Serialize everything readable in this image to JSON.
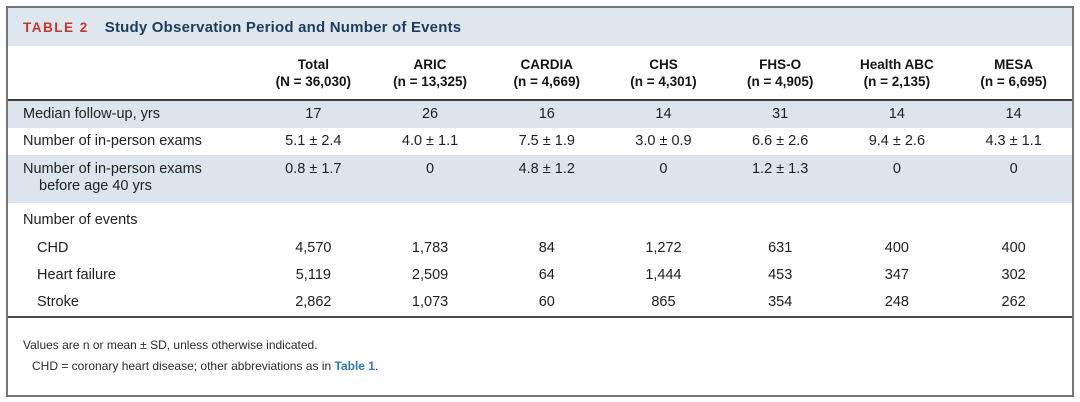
{
  "table": {
    "label": "TABLE 2",
    "title": "Study Observation Period and Number of Events",
    "columns": [
      {
        "name": "Total",
        "n": "(N = 36,030)"
      },
      {
        "name": "ARIC",
        "n": "(n = 13,325)"
      },
      {
        "name": "CARDIA",
        "n": "(n = 4,669)"
      },
      {
        "name": "CHS",
        "n": "(n = 4,301)"
      },
      {
        "name": "FHS-O",
        "n": "(n = 4,905)"
      },
      {
        "name": "Health ABC",
        "n": "(n = 2,135)"
      },
      {
        "name": "MESA",
        "n": "(n = 6,695)"
      }
    ],
    "rows": [
      {
        "label": "Median follow-up, yrs",
        "values": [
          "17",
          "26",
          "16",
          "14",
          "31",
          "14",
          "14"
        ]
      },
      {
        "label": "Number of in-person exams",
        "values": [
          "5.1 ± 2.4",
          "4.0 ± 1.1",
          "7.5 ± 1.9",
          "3.0 ± 0.9",
          "6.6 ± 2.6",
          "9.4 ± 2.6",
          "4.3 ± 1.1"
        ]
      },
      {
        "label": "Number of in-person exams",
        "label2": "before age 40 yrs",
        "values": [
          "0.8 ± 1.7",
          "0",
          "4.8 ± 1.2",
          "0",
          "1.2 ± 1.3",
          "0",
          "0"
        ]
      },
      {
        "label": "Number of events",
        "values": [
          "",
          "",
          "",
          "",
          "",
          "",
          ""
        ]
      },
      {
        "label": "CHD",
        "values": [
          "4,570",
          "1,783",
          "84",
          "1,272",
          "631",
          "400",
          "400"
        ]
      },
      {
        "label": "Heart failure",
        "values": [
          "5,119",
          "2,509",
          "64",
          "1,444",
          "453",
          "347",
          "302"
        ]
      },
      {
        "label": "Stroke",
        "values": [
          "2,862",
          "1,073",
          "60",
          "865",
          "354",
          "248",
          "262"
        ]
      }
    ],
    "footnotes": {
      "line1": "Values are n or mean ± SD, unless otherwise indicated.",
      "line2_prefix": "CHD = coronary heart disease; other abbreviations as in ",
      "line2_link": "Table 1",
      "line2_suffix": "."
    }
  },
  "colors": {
    "table_number_red": "#c4362e",
    "title_navy": "#1e3c5d",
    "band_blue": "#dfe7ee",
    "row_shade_blue": "#dce5ee",
    "link_blue": "#2e7cb5",
    "border_gray": "#757575",
    "separator_dark": "#3d3d3d"
  }
}
